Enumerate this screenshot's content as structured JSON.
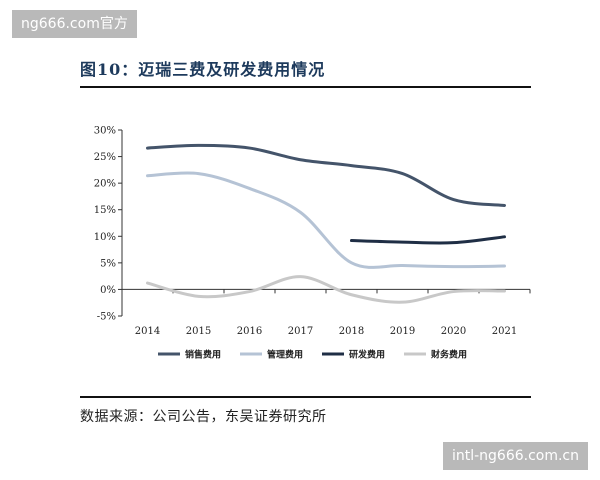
{
  "watermark": {
    "top": "ng666.com官方",
    "bottom": "intl-ng666.com.cn"
  },
  "figure_title": "图10：迈瑞三费及研发费用情况",
  "source": "数据来源：公司公告，东吴证券研究所",
  "chart_data": {
    "type": "line",
    "title": "",
    "xlabel": "",
    "ylabel": "",
    "x": [
      2014,
      2015,
      2016,
      2017,
      2018,
      2019,
      2020,
      2021
    ],
    "x_tick_labels": [
      "2014",
      "2015",
      "2016",
      "2017",
      "2018",
      "2019",
      "2020",
      "2021"
    ],
    "y_tick_labels": [
      "30%",
      "25%",
      "20%",
      "15%",
      "10%",
      "5%",
      "0%",
      "-5%"
    ],
    "ylim": [
      -5,
      30
    ],
    "y_unit": "%",
    "grid": false,
    "legend_position": "bottom",
    "series": [
      {
        "name": "销售费用",
        "color": "#44546a",
        "values": [
          26.6,
          27.1,
          26.6,
          24.4,
          23.3,
          21.8,
          16.9,
          15.8
        ]
      },
      {
        "name": "管理费用",
        "color": "#b5c3d5",
        "values": [
          21.4,
          21.8,
          19.0,
          14.5,
          5.0,
          4.5,
          4.3,
          4.4
        ]
      },
      {
        "name": "研发费用",
        "color": "#1f2e45",
        "values": [
          null,
          null,
          null,
          null,
          9.2,
          8.9,
          8.8,
          9.9
        ]
      },
      {
        "name": "财务费用",
        "color": "#c8c8c8",
        "values": [
          1.2,
          -1.3,
          -0.4,
          2.4,
          -1.0,
          -2.4,
          -0.4,
          -0.3
        ]
      }
    ]
  }
}
